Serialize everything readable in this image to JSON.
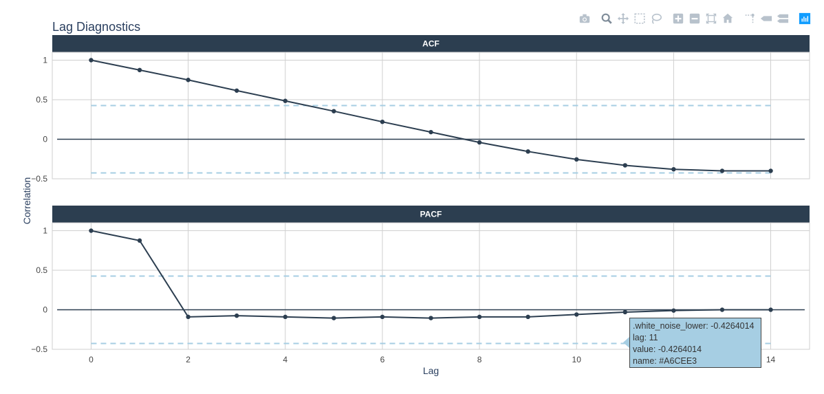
{
  "app": {
    "title": "Lag Diagnostics"
  },
  "modebar": {
    "buttons": [
      {
        "name": "camera-icon",
        "interactable": true
      },
      {
        "name": "zoom-icon",
        "interactable": true,
        "active": true
      },
      {
        "name": "pan-icon",
        "interactable": true
      },
      {
        "name": "box-select-icon",
        "interactable": true
      },
      {
        "name": "lasso-select-icon",
        "interactable": true
      },
      {
        "name": "zoom-in-icon",
        "interactable": true
      },
      {
        "name": "zoom-out-icon",
        "interactable": true
      },
      {
        "name": "autoscale-icon",
        "interactable": true
      },
      {
        "name": "reset-axes-icon",
        "interactable": true
      },
      {
        "name": "spike-lines-icon",
        "interactable": true
      },
      {
        "name": "hover-closest-icon",
        "interactable": true
      },
      {
        "name": "hover-compare-icon",
        "interactable": true
      },
      {
        "name": "plotly-logo-icon",
        "interactable": true
      }
    ],
    "icon_color": "#b8c2cc",
    "active_color": "#7f8c99",
    "logo_color": "#119dff"
  },
  "tooltip": {
    "line1": ".white_noise_lower: -0.4264014",
    "line2": "lag: 11",
    "line3": "value: -0.4264014",
    "line4": "name: #A6CEE3"
  },
  "colors": {
    "strip_bg": "#2c3e50",
    "strip_text": "#ffffff",
    "line": "#2c3e50",
    "noise": "#a6cee3",
    "grid": "#cfcfcf",
    "border": "#cfcfcf",
    "tick_text": "#444444"
  },
  "chart_data": {
    "type": "line",
    "title": "Lag Diagnostics",
    "xlabel": "Lag",
    "ylabel": "Correlation",
    "xlim": [
      -0.8,
      14.8
    ],
    "xticks": [
      0,
      2,
      4,
      6,
      8,
      10,
      12,
      14
    ],
    "xtick_labels": [
      "0",
      "2",
      "4",
      "6",
      "8",
      "10",
      "12",
      "14"
    ],
    "yticks": [
      1,
      0.5,
      0,
      -0.5
    ],
    "ytick_labels": [
      "1",
      "0.5",
      "0",
      "−0.5"
    ],
    "ylim": [
      -0.5,
      1.1
    ],
    "white_noise_upper": 0.4264014,
    "white_noise_lower": -0.4264014,
    "grid": true,
    "panels": [
      {
        "name": "ACF",
        "x": [
          0,
          1,
          2,
          3,
          4,
          5,
          6,
          7,
          8,
          9,
          10,
          11,
          12,
          13,
          14
        ],
        "values": [
          1.0,
          0.875,
          0.75,
          0.615,
          0.485,
          0.355,
          0.22,
          0.09,
          -0.04,
          -0.155,
          -0.255,
          -0.33,
          -0.38,
          -0.4,
          -0.4
        ]
      },
      {
        "name": "PACF",
        "x": [
          0,
          1,
          2,
          3,
          4,
          5,
          6,
          7,
          8,
          9,
          10,
          11,
          12,
          13,
          14
        ],
        "values": [
          1.0,
          0.875,
          -0.09,
          -0.075,
          -0.09,
          -0.105,
          -0.09,
          -0.105,
          -0.09,
          -0.09,
          -0.06,
          -0.03,
          -0.01,
          0.0,
          0.0
        ]
      }
    ]
  }
}
